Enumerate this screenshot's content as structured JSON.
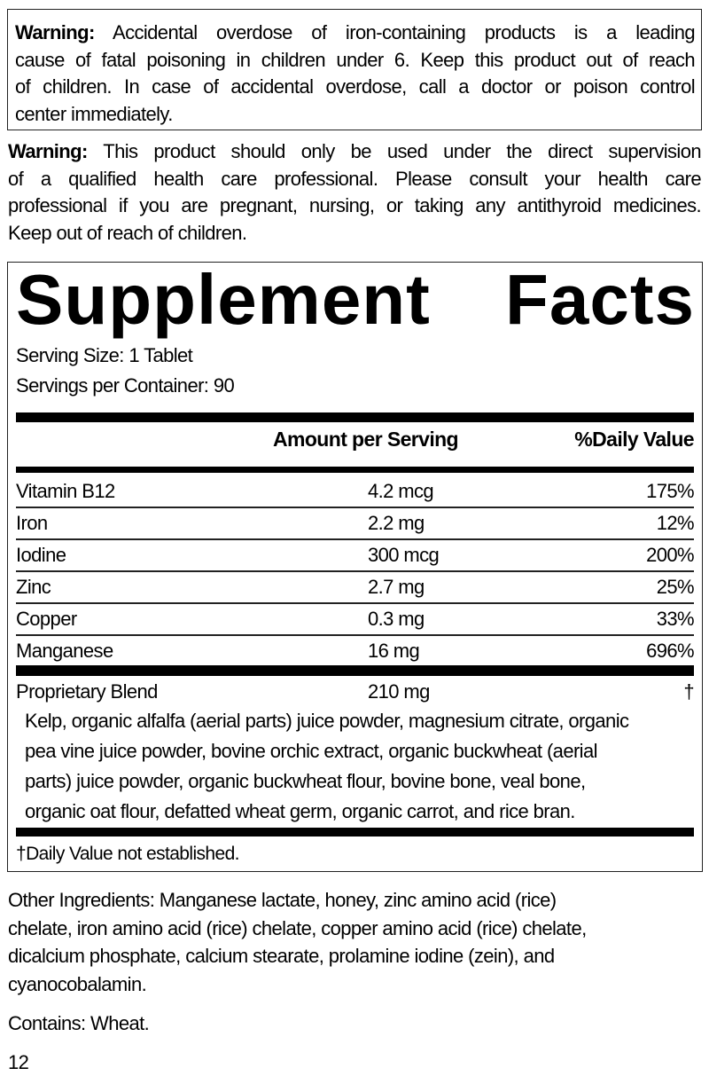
{
  "warning1": {
    "label": "Warning:",
    "lines": [
      " Accidental overdose of iron-containing products is a leading",
      "cause of fatal poisoning in children under 6. Keep this product out of reach",
      "of children. In case of accidental overdose, call a doctor or poison control",
      "center immediately."
    ]
  },
  "warning2": {
    "label": "Warning:",
    "lines": [
      " This product should only be used under the direct supervision",
      "of a qualified health care professional. Please consult your health care",
      "professional if you are pregnant, nursing, or taking any antithyroid medicines.",
      "Keep out of reach of children."
    ]
  },
  "facts": {
    "title": "Supplement Facts",
    "serving_size": "Serving Size: 1 Tablet",
    "servings_per_container": "Servings per Container: 90",
    "header_amount": "Amount per Serving",
    "header_dv": "%Daily Value",
    "rows": [
      {
        "name": "Vitamin B12",
        "amount": "4.2 mcg",
        "dv": "175%"
      },
      {
        "name": "Iron",
        "amount": "2.2 mg",
        "dv": "12%"
      },
      {
        "name": "Iodine",
        "amount": "300 mcg",
        "dv": "200%"
      },
      {
        "name": "Zinc",
        "amount": "2.7 mg",
        "dv": "25%"
      },
      {
        "name": "Copper",
        "amount": "0.3 mg",
        "dv": "33%"
      },
      {
        "name": "Manganese",
        "amount": "16 mg",
        "dv": "696%"
      }
    ],
    "blend": {
      "name": "Proprietary Blend",
      "amount": "210 mg",
      "dv": "†",
      "lines": [
        "Kelp, organic alfalfa (aerial parts) juice powder, magnesium citrate, organic",
        "pea vine juice powder, bovine orchic extract, organic buckwheat (aerial",
        "parts) juice powder, organic buckwheat flour, bovine bone, veal bone,",
        "organic oat flour, defatted wheat germ, organic carrot, and rice bran."
      ]
    },
    "footnote": "†Daily Value not established."
  },
  "other_ingredients": [
    "Other Ingredients: Manganese lactate, honey, zinc amino acid (rice)",
    "chelate, iron amino acid (rice) chelate, copper amino acid (rice) chelate,",
    "dicalcium phosphate, calcium stearate, prolamine iodine (zein), and",
    "cyanocobalamin."
  ],
  "contains": "Contains: Wheat.",
  "page_number": "12"
}
